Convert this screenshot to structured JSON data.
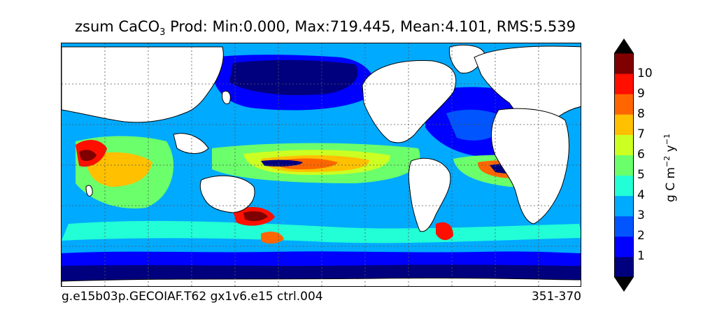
{
  "title": {
    "prefix": "zsum CaCO",
    "subscript": "3",
    "rest": " Prod: Min:0.000, Max:719.445, Mean:4.101, RMS:5.539"
  },
  "footer": {
    "run": "g.e15b03p.GECOIAF.T62 gx1v6.e15 ctrl.004",
    "years": "351-370"
  },
  "colorbar": {
    "units_text": "g C m",
    "units_exp1": "−2",
    "units_mid": " y",
    "units_exp2": "−1",
    "ticks": [
      "1",
      "2",
      "3",
      "4",
      "5",
      "6",
      "7",
      "8",
      "9",
      "10"
    ],
    "colors": [
      "#00007f",
      "#0000ff",
      "#0055ff",
      "#00aaff",
      "#22ffd6",
      "#6bff6b",
      "#ccff22",
      "#ffc000",
      "#ff6600",
      "#ff0f00",
      "#7f0000"
    ],
    "extend": "both"
  },
  "map": {
    "land_color": "#ffffff",
    "coast_color": "#000000",
    "grid": true
  }
}
